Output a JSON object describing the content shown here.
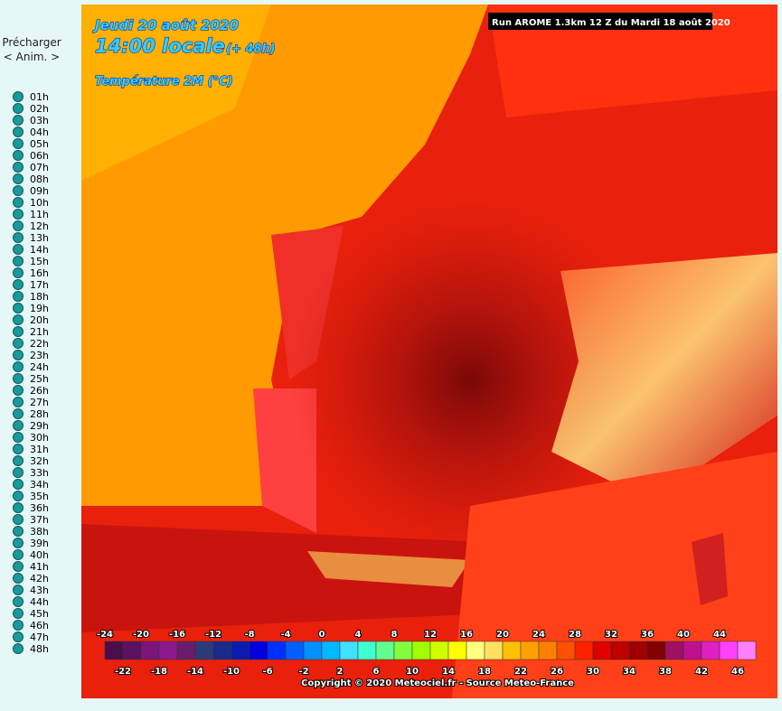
{
  "sidebar": {
    "preload": "Précharger",
    "anim": "< Anim. >",
    "hours": [
      "01h",
      "02h",
      "03h",
      "04h",
      "05h",
      "06h",
      "07h",
      "08h",
      "09h",
      "10h",
      "11h",
      "12h",
      "13h",
      "14h",
      "15h",
      "16h",
      "17h",
      "18h",
      "19h",
      "20h",
      "21h",
      "22h",
      "23h",
      "24h",
      "25h",
      "26h",
      "27h",
      "28h",
      "29h",
      "30h",
      "31h",
      "32h",
      "33h",
      "34h",
      "35h",
      "36h",
      "37h",
      "38h",
      "39h",
      "40h",
      "41h",
      "42h",
      "43h",
      "44h",
      "45h",
      "46h",
      "47h",
      "48h"
    ]
  },
  "map": {
    "date": "Jeudi 20 août 2020",
    "time": "14:00 locale",
    "lead": "(+ 48h)",
    "parameter": "Température 2M (°C)",
    "run": "Run AROME 1.3km 12 Z du Mardi 18 août 2020",
    "copyright": "Copyright © 2020 Meteociel.fr - Source Meteo-France",
    "colorbar": {
      "top_labels": [
        -24,
        -20,
        -16,
        -12,
        -8,
        -4,
        0,
        4,
        8,
        12,
        16,
        20,
        24,
        28,
        32,
        36,
        40,
        44
      ],
      "bottom_labels": [
        -22,
        -18,
        -14,
        -10,
        -6,
        -2,
        2,
        6,
        10,
        14,
        18,
        22,
        26,
        30,
        34,
        38,
        42,
        46
      ],
      "colors": [
        "#4b0c4b",
        "#5c1060",
        "#7a157a",
        "#8c1a8c",
        "#6a1c6a",
        "#2d3a7a",
        "#1a2a8a",
        "#0a1ab0",
        "#0000e0",
        "#0030ff",
        "#0060ff",
        "#0090ff",
        "#00b8ff",
        "#40e0ff",
        "#40ffd0",
        "#60ff90",
        "#80ff40",
        "#a0ff00",
        "#d0ff00",
        "#ffff00",
        "#ffff80",
        "#ffe060",
        "#ffc000",
        "#ffa000",
        "#ff7f00",
        "#ff5000",
        "#ff2000",
        "#e00000",
        "#c00000",
        "#a00000",
        "#800000",
        "#a01060",
        "#c01090",
        "#e020c0",
        "#ff40ff",
        "#ff80ff"
      ]
    }
  }
}
